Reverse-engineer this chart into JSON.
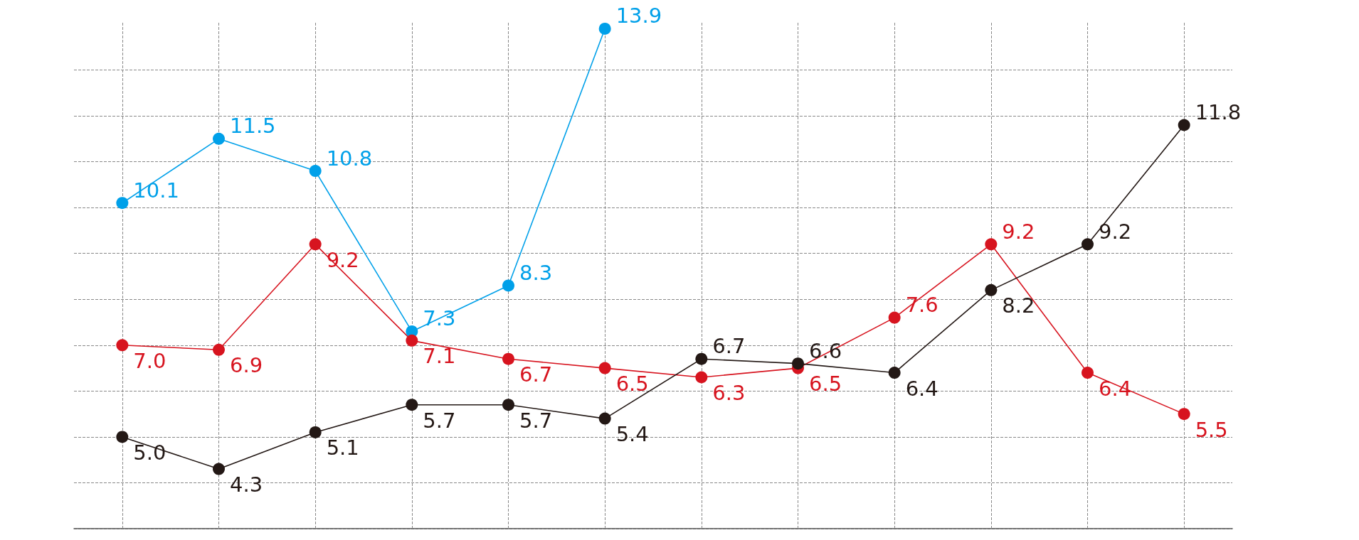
{
  "chart_data": {
    "type": "line",
    "categories": [
      null,
      null,
      null,
      null,
      null,
      null,
      null,
      null,
      null,
      null,
      null,
      null
    ],
    "series": [
      {
        "color": "#00a0e9",
        "values": [
          10.1,
          11.5,
          10.8,
          7.3,
          8.3,
          13.9,
          null,
          null,
          null,
          null,
          null,
          null
        ],
        "value_labels": [
          "10.1",
          "11.5",
          "10.8",
          "7.3",
          "8.3",
          "13.9",
          null,
          null,
          null,
          null,
          null,
          null
        ]
      },
      {
        "color": "#d7141f",
        "values": [
          7.0,
          6.9,
          9.2,
          7.1,
          6.7,
          6.5,
          6.3,
          6.5,
          7.6,
          9.2,
          6.4,
          5.5
        ],
        "value_labels": [
          "7.0",
          "6.9",
          "9.2",
          "7.1",
          "6.7",
          "6.5",
          "6.3",
          "6.5",
          "7.6",
          "9.2",
          "6.4",
          "5.5"
        ]
      },
      {
        "color": "#231815",
        "values": [
          5.0,
          4.3,
          5.1,
          5.7,
          5.7,
          5.4,
          6.7,
          6.6,
          6.4,
          8.2,
          9.2,
          11.8
        ],
        "value_labels": [
          "5.0",
          "4.3",
          "5.1",
          "5.7",
          "5.7",
          "5.4",
          "6.7",
          "6.6",
          "6.4",
          "8.2",
          "9.2",
          "11.8"
        ]
      }
    ],
    "ylim": [
      3,
      14
    ],
    "yticks": [
      {
        "value": 3,
        "label": null
      },
      {
        "value": 4,
        "label": null
      },
      {
        "value": 5,
        "label": null
      },
      {
        "value": 6,
        "label": null
      },
      {
        "value": 7,
        "label": null
      },
      {
        "value": 8,
        "label": null
      },
      {
        "value": 9,
        "label": null
      },
      {
        "value": 10,
        "label": null
      },
      {
        "value": 11,
        "label": null
      },
      {
        "value": 12,
        "label": null
      },
      {
        "value": 13,
        "label": null
      }
    ],
    "grid": true,
    "marker": "circle",
    "line_style": "solid"
  }
}
